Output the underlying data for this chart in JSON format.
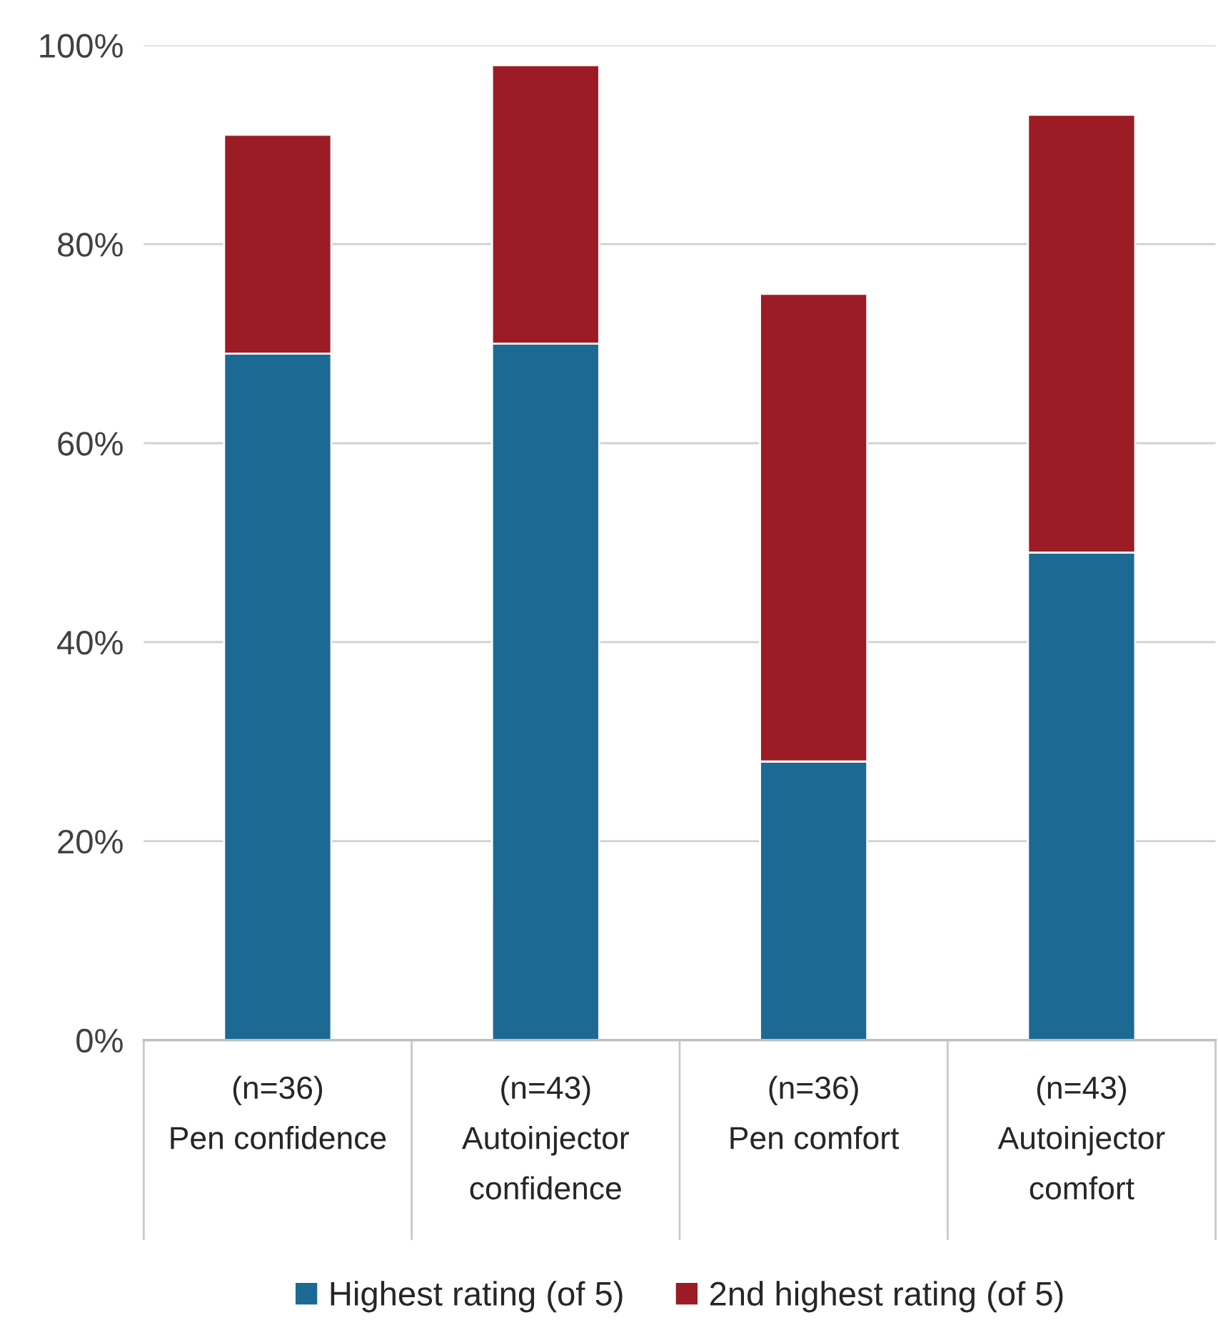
{
  "chart_data": {
    "type": "bar",
    "stacked": true,
    "categories": [
      "(n=36)\nPen confidence",
      "(n=43)\nAutoinjector\nconfidence",
      "(n=36)\nPen comfort",
      "(n=43)\nAutoinjector\ncomfort"
    ],
    "series": [
      {
        "name": "Highest rating (of 5)",
        "color": "#1c6a93",
        "values": [
          69,
          70,
          28,
          49
        ]
      },
      {
        "name": "2nd highest rating (of 5)",
        "color": "#9b1c24",
        "values": [
          22,
          28,
          47,
          44
        ]
      }
    ],
    "ylim": [
      0,
      100
    ],
    "yticks": [
      {
        "value": 0,
        "label": "0%"
      },
      {
        "value": 20,
        "label": "20%"
      },
      {
        "value": 40,
        "label": "40%"
      },
      {
        "value": 60,
        "label": "60%"
      },
      {
        "value": 80,
        "label": "80%"
      },
      {
        "value": 100,
        "label": "100%"
      }
    ],
    "grid": "y",
    "legend": "bottom"
  }
}
